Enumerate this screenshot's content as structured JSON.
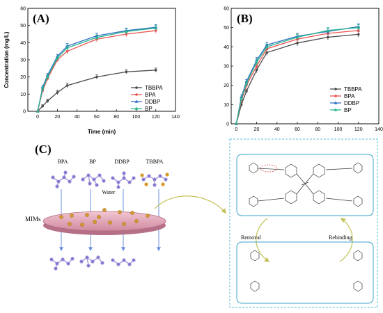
{
  "colors": {
    "TBBPA": "#4a4a4a",
    "BPA": "#ec5353",
    "DDBP": "#2f6fc4",
    "BP": "#2ab58e",
    "disk": "#e7a7b8",
    "disk_edge": "#b26c80",
    "particle": "#d59a2a",
    "dashed_box": "#5cbcd8",
    "arrow": "#6b8de0",
    "curved_arrow": "#c3c25a"
  },
  "chart_data": [
    {
      "type": "line",
      "panel_label": "(A)",
      "xlabel": "Time (min)",
      "ylabel": "Concentration (mg/L)",
      "xlim": [
        -10,
        140
      ],
      "ylim": [
        0,
        60
      ],
      "xticks": [
        0,
        20,
        40,
        60,
        80,
        100,
        120,
        140
      ],
      "yticks": [
        0,
        10,
        20,
        30,
        40,
        50,
        60
      ],
      "x": [
        0,
        5,
        10,
        20,
        30,
        60,
        90,
        120
      ],
      "legend_position": "lower-right",
      "series": [
        {
          "name": "TBBPA",
          "marker": "circle",
          "values": [
            0,
            3,
            6,
            11,
            15,
            20,
            23,
            24
          ],
          "errors": [
            0,
            0.8,
            1,
            1.3,
            1.4,
            1.2,
            1.2,
            1.2
          ]
        },
        {
          "name": "BPA",
          "marker": "circle",
          "values": [
            0,
            12,
            19,
            30,
            35,
            42,
            45,
            47
          ],
          "errors": [
            0,
            1,
            1,
            1.2,
            1.5,
            1.5,
            1.5,
            1.5
          ]
        },
        {
          "name": "DDBP",
          "marker": "triangle",
          "values": [
            0,
            14,
            21,
            32,
            38,
            44,
            47,
            49
          ],
          "errors": [
            0,
            1,
            1,
            1.2,
            1.5,
            1.5,
            1.5,
            1.5
          ]
        },
        {
          "name": "BP",
          "marker": "triangle",
          "values": [
            0,
            13,
            20,
            31,
            37,
            43,
            46.5,
            48.5
          ],
          "errors": [
            0,
            1,
            1,
            1.2,
            1.5,
            1.5,
            1.5,
            1.5
          ]
        }
      ]
    },
    {
      "type": "line",
      "panel_label": "(B)",
      "xlabel": "",
      "ylabel": "",
      "xlim": [
        -5,
        140
      ],
      "ylim": [
        0,
        60
      ],
      "xticks": [
        0,
        20,
        40,
        60,
        80,
        100,
        120,
        140
      ],
      "yticks": [
        0,
        10,
        20,
        30,
        40,
        50,
        60
      ],
      "x": [
        0,
        5,
        10,
        20,
        30,
        60,
        90,
        120
      ],
      "legend_position": "lower-right",
      "series": [
        {
          "name": "TBBPA",
          "marker": "circle",
          "values": [
            0,
            10,
            17,
            28,
            37,
            42,
            45,
            46.5
          ],
          "errors": [
            0,
            1,
            1,
            1.5,
            1.5,
            1.5,
            1.5,
            1.5
          ]
        },
        {
          "name": "BPA",
          "marker": "circle",
          "values": [
            0,
            12,
            20,
            30,
            39,
            44,
            47,
            48.5
          ],
          "errors": [
            0,
            1,
            1,
            1.5,
            1.5,
            1.5,
            1.5,
            1.5
          ]
        },
        {
          "name": "DDBP",
          "marker": "triangle",
          "values": [
            0,
            14,
            22,
            33,
            41,
            45.5,
            48,
            50.5
          ],
          "errors": [
            0,
            1,
            1,
            1.5,
            1.5,
            1.5,
            1.5,
            1.5
          ]
        },
        {
          "name": "BP",
          "marker": "triangle",
          "values": [
            0,
            13,
            21,
            32,
            40,
            45,
            48.5,
            50
          ],
          "errors": [
            0,
            1,
            1,
            1.5,
            1.5,
            1.5,
            1.5,
            1.5
          ]
        }
      ]
    }
  ],
  "schematic": {
    "panel_label": "(C)",
    "compounds": [
      "BPA",
      "BP",
      "DDBP",
      "TBBPA"
    ],
    "water_label": "Water",
    "mims_label": "MIMs",
    "removal_label": "Removal",
    "rebinding_label": "Rebinding"
  }
}
